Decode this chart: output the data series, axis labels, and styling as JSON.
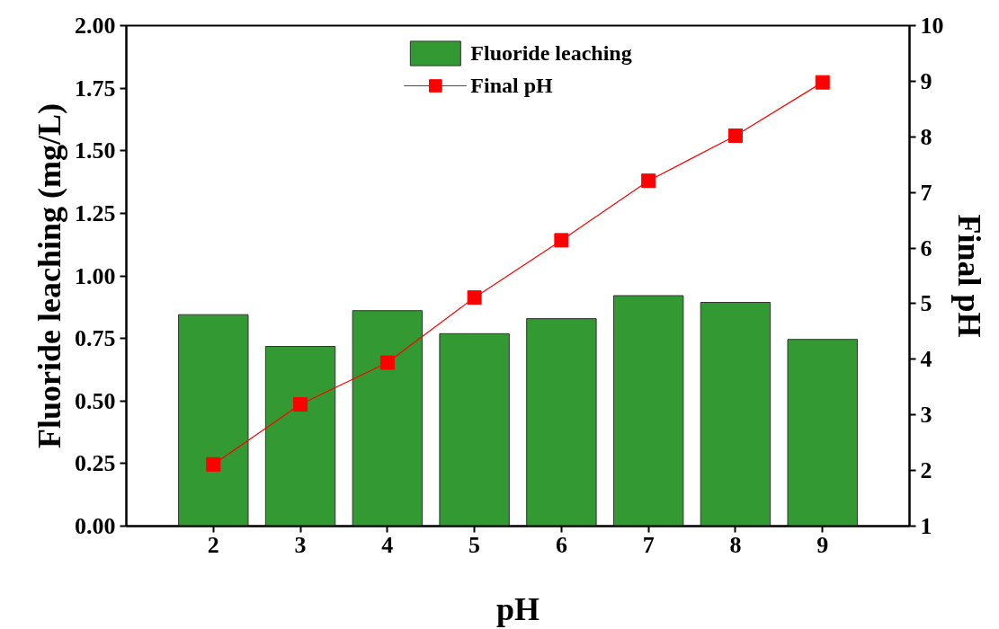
{
  "chart_data": {
    "type": "bar",
    "xlabel": "pH",
    "ylabel": "Fluoride leaching (mg/L)",
    "y2label": "Final pH",
    "x": [
      2,
      3,
      4,
      5,
      6,
      7,
      8,
      9
    ],
    "xlim": [
      1,
      10
    ],
    "xticks": [
      2,
      3,
      4,
      5,
      6,
      7,
      8,
      9
    ],
    "ylim": [
      0,
      2
    ],
    "yticks": [
      {
        "value": 0,
        "label": "0.00"
      },
      {
        "value": 0.25,
        "label": "0.25"
      },
      {
        "value": 0.5,
        "label": "0.50"
      },
      {
        "value": 0.75,
        "label": "0.75"
      },
      {
        "value": 1,
        "label": "1.00"
      },
      {
        "value": 1.25,
        "label": "1.25"
      },
      {
        "value": 1.5,
        "label": "1.50"
      },
      {
        "value": 1.75,
        "label": "1.75"
      },
      {
        "value": 2,
        "label": "2.00"
      }
    ],
    "y2lim": [
      1,
      10
    ],
    "y2ticks": [
      1,
      2,
      3,
      4,
      5,
      6,
      7,
      8,
      9,
      10
    ],
    "series": [
      {
        "name": "Fluoride leaching",
        "color": "#339933",
        "values": [
          0.845,
          0.718,
          0.861,
          0.769,
          0.829,
          0.921,
          0.894,
          0.746
        ]
      },
      {
        "name": "Final pH",
        "type": "line",
        "axis": "y2",
        "color": "#ff0000",
        "marker": "square",
        "line_style": "solid",
        "values": [
          2.11,
          3.19,
          3.94,
          5.11,
          6.14,
          7.21,
          8.02,
          8.98
        ]
      }
    ],
    "legend": "top",
    "grid": false
  }
}
